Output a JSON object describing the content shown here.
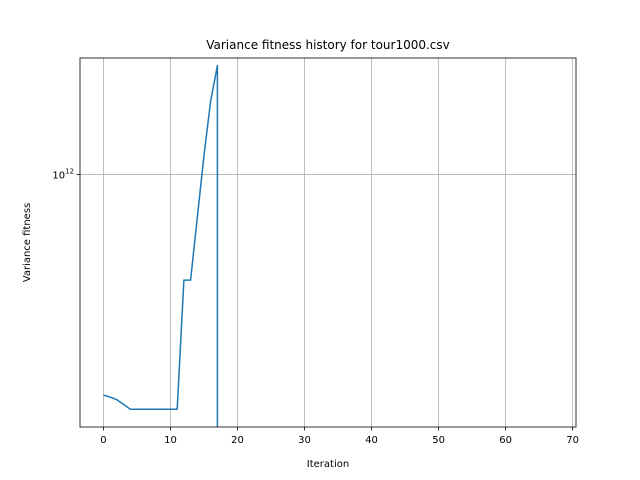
{
  "chart_data": {
    "type": "line",
    "title": "Variance fitness history for tour1000.csv",
    "xlabel": "Iteration",
    "ylabel": "Variance fitness",
    "yscale": "log",
    "grid": true,
    "xlim": [
      -3.5,
      70.5
    ],
    "ylim": [
      200000000000.0,
      2100000000000.0
    ],
    "xticks": [
      0,
      10,
      20,
      30,
      40,
      50,
      60,
      70
    ],
    "yticks": [
      {
        "value": 1000000000000.0,
        "base": "10",
        "exponent": "12"
      }
    ],
    "color": "#1f77b4",
    "series": [
      {
        "x": [
          0,
          1,
          2,
          3,
          4,
          5,
          6,
          7,
          8,
          9,
          10,
          11,
          12,
          13,
          14,
          15,
          16,
          17,
          17
        ],
        "y": [
          245000000000.0,
          242000000000.0,
          238000000000.0,
          231000000000.0,
          224000000000.0,
          224000000000.0,
          224000000000.0,
          224000000000.0,
          224000000000.0,
          224000000000.0,
          224000000000.0,
          224000000000.0,
          510000000000.0,
          510000000000.0,
          760000000000.0,
          1130000000000.0,
          1600000000000.0,
          2000000000000.0,
          200000000000.0
        ]
      }
    ]
  }
}
